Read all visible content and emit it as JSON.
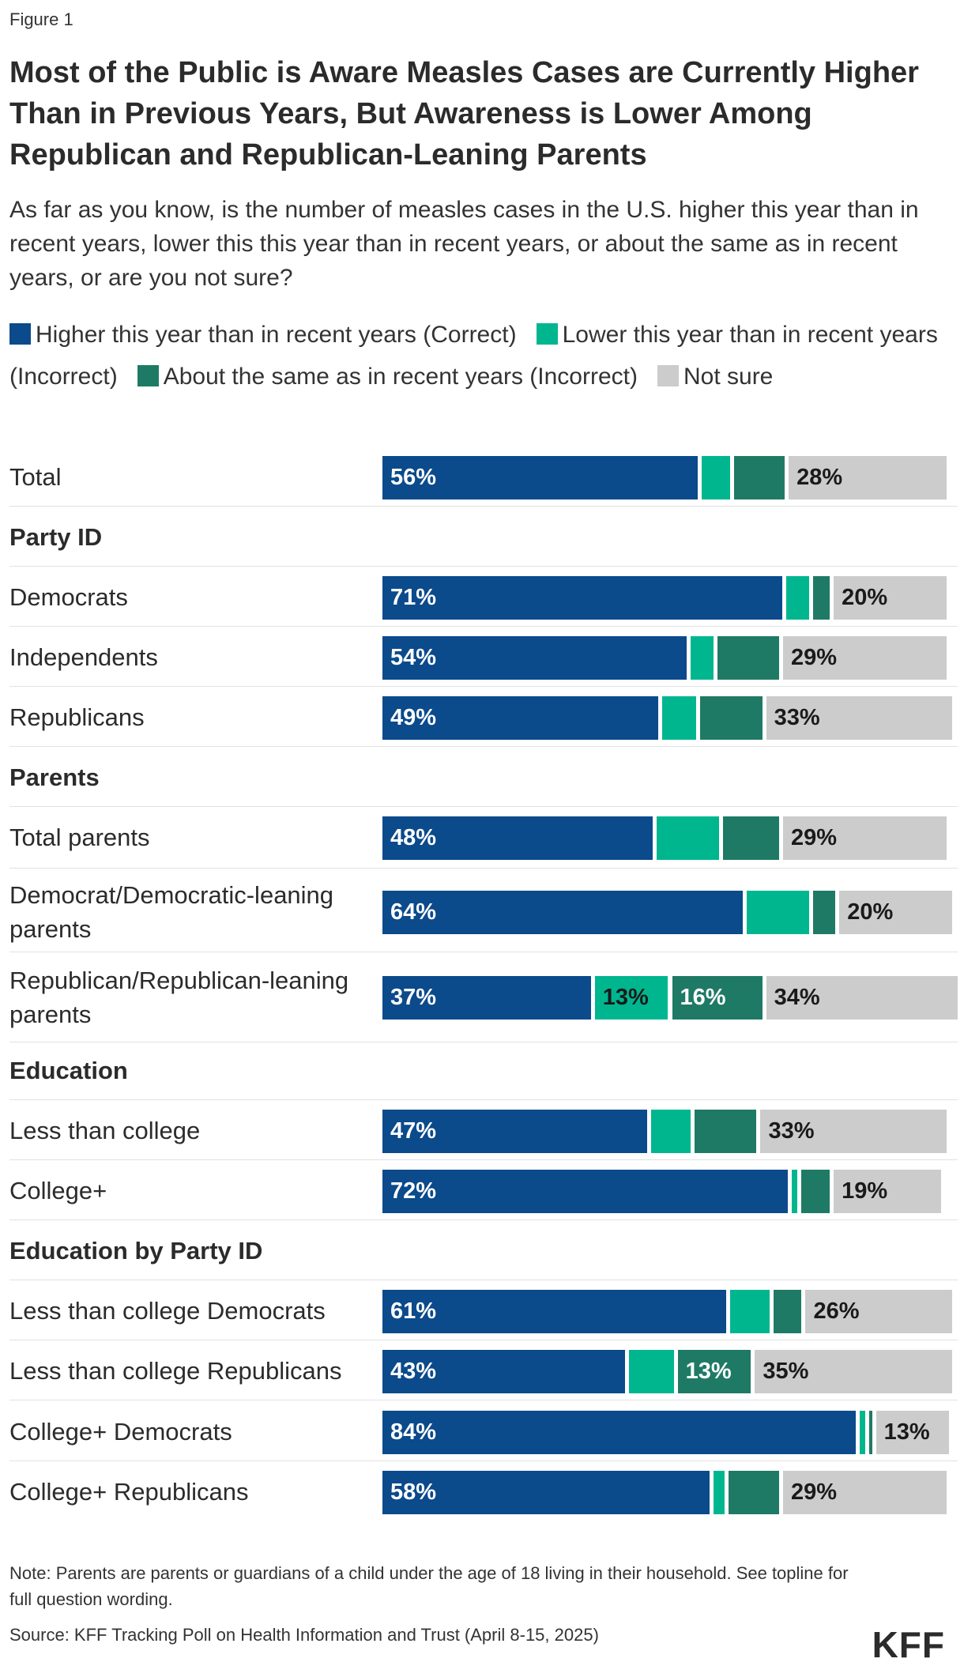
{
  "figure_label": "Figure 1",
  "title": "Most of the Public is Aware Measles Cases are Currently Higher Than in Previous Years, But Awareness is Lower Among Republican and Republican-Leaning Parents",
  "subtitle": "As far as you know, is the number of measles cases in the U.S. higher this year than in recent years, lower this this year than in recent years, or about the same as in recent years, or are you not sure?",
  "note": "Note: Parents are parents or guardians of a child under the age of 18 living in their household. See topline for full question wording.",
  "source": "Source: KFF Tracking Poll on Health Information and Trust (April 8-15, 2025)",
  "logo_text": "KFF",
  "colors": {
    "higher": "#0b4a8b",
    "lower": "#00b68f",
    "same": "#1f7a65",
    "not_sure": "#cccccc"
  },
  "chart_data": {
    "type": "bar",
    "orientation": "horizontal",
    "stacked": true,
    "xlim": [
      0,
      100
    ],
    "legend_position": "top",
    "series": [
      {
        "key": "higher",
        "name": "Higher this year than in recent years (Correct)"
      },
      {
        "key": "lower",
        "name": "Lower this year than in recent years (Incorrect)"
      },
      {
        "key": "same",
        "name": "About the same as in recent years (Incorrect)"
      },
      {
        "key": "not_sure",
        "name": "Not sure"
      }
    ],
    "rows": [
      {
        "kind": "category",
        "label": "Total",
        "values": [
          56,
          5,
          9,
          28
        ],
        "labels": [
          "56%",
          "",
          "",
          "28%"
        ]
      },
      {
        "kind": "section",
        "label": "Party ID"
      },
      {
        "kind": "category",
        "label": "Democrats",
        "values": [
          71,
          4,
          3,
          20
        ],
        "labels": [
          "71%",
          "",
          "",
          "20%"
        ]
      },
      {
        "kind": "category",
        "label": "Independents",
        "values": [
          54,
          4,
          11,
          29
        ],
        "labels": [
          "54%",
          "",
          "",
          "29%"
        ]
      },
      {
        "kind": "category",
        "label": "Republicans",
        "values": [
          49,
          6,
          11,
          33
        ],
        "labels": [
          "49%",
          "",
          "",
          "33%"
        ]
      },
      {
        "kind": "section",
        "label": "Parents"
      },
      {
        "kind": "category",
        "label": "Total parents",
        "values": [
          48,
          11,
          10,
          29
        ],
        "labels": [
          "48%",
          "",
          "",
          "29%"
        ]
      },
      {
        "kind": "category",
        "label": "Democrat/Democratic-leaning parents",
        "values": [
          64,
          11,
          4,
          20
        ],
        "labels": [
          "64%",
          "",
          "",
          "20%"
        ]
      },
      {
        "kind": "category",
        "label": "Republican/Republican-leaning parents",
        "values": [
          37,
          13,
          16,
          34
        ],
        "labels": [
          "37%",
          "13%",
          "16%",
          "34%"
        ]
      },
      {
        "kind": "section",
        "label": "Education"
      },
      {
        "kind": "category",
        "label": "Less than college",
        "values": [
          47,
          7,
          11,
          33
        ],
        "labels": [
          "47%",
          "",
          "",
          "33%"
        ]
      },
      {
        "kind": "category",
        "label": "College+",
        "values": [
          72,
          1,
          5,
          19
        ],
        "labels": [
          "72%",
          "",
          "",
          "19%"
        ]
      },
      {
        "kind": "section",
        "label": "Education by Party ID"
      },
      {
        "kind": "category",
        "label": "Less than college Democrats",
        "values": [
          61,
          7,
          5,
          26
        ],
        "labels": [
          "61%",
          "",
          "",
          "26%"
        ]
      },
      {
        "kind": "category",
        "label": "Less than college Republicans",
        "values": [
          43,
          8,
          13,
          35
        ],
        "labels": [
          "43%",
          "",
          "13%",
          "35%"
        ]
      },
      {
        "kind": "category",
        "label": "College+ Democrats",
        "values": [
          84,
          1,
          0.5,
          13
        ],
        "labels": [
          "84%",
          "",
          "",
          "13%"
        ]
      },
      {
        "kind": "category",
        "label": "College+ Republicans",
        "values": [
          58,
          2,
          9,
          29
        ],
        "labels": [
          "58%",
          "",
          "",
          "29%"
        ]
      }
    ]
  }
}
